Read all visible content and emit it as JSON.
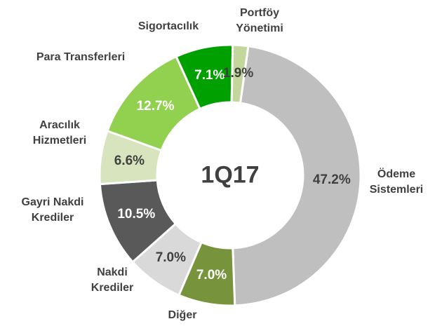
{
  "chart_data": {
    "type": "donut",
    "center_label": "1Q17",
    "categories": [
      "Ödeme\nSistemleri",
      "Diğer",
      "Nakdi\nKrediler",
      "Gayri Nakdi\nKrediler",
      "Aracılık\nHizmetleri",
      "Para Transferleri",
      "Sigortacılık",
      "Portföy\nYönetimi"
    ],
    "values": [
      47.2,
      7.0,
      7.0,
      10.5,
      6.6,
      12.7,
      7.1,
      1.9
    ],
    "value_labels": [
      "47.2%",
      "7.0%",
      "7.0%",
      "10.5%",
      "6.6%",
      "12.7%",
      "7.1%",
      "1.9%"
    ],
    "colors": [
      "#bfbfbf",
      "#77933c",
      "#d9d9d9",
      "#595959",
      "#d7e4bd",
      "#92d050",
      "#00a000",
      "#c3d69b"
    ]
  }
}
